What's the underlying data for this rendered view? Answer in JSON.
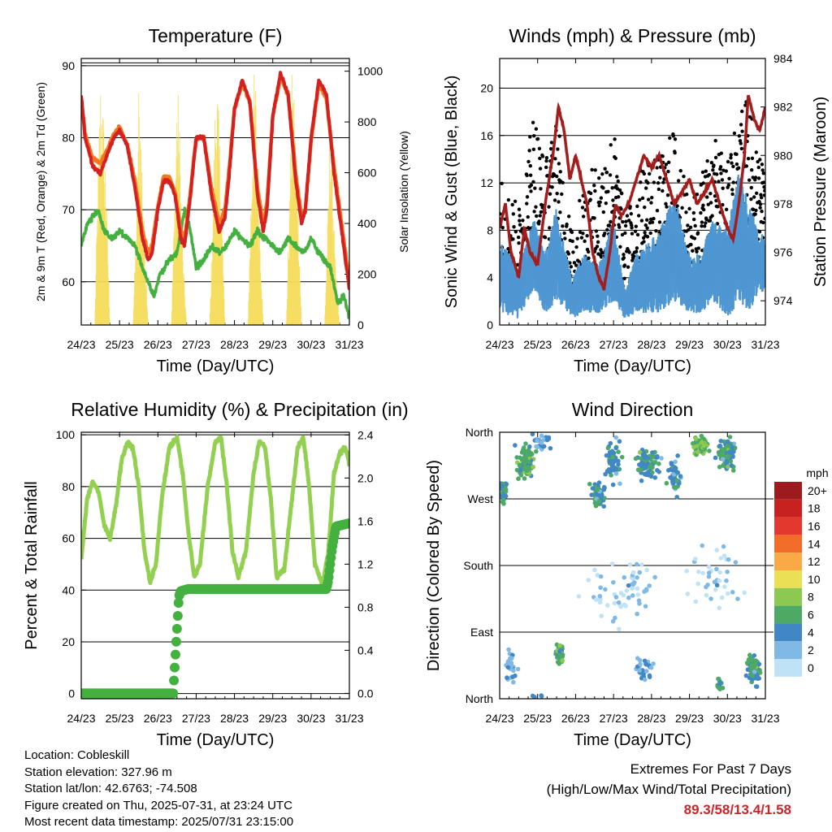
{
  "chart_data": [
    {
      "type": "line",
      "title": "Temperature (F)",
      "xlabel": "Time (Day/UTC)",
      "ylabel": "2m & 9m T (Red, Orange) & 2m Td (Green)",
      "y2label": "Solar Insolation (Yellow)",
      "x_ticks": [
        "24/23",
        "25/23",
        "26/23",
        "27/23",
        "28/23",
        "29/23",
        "30/23",
        "31/23"
      ],
      "ylim": [
        54,
        91
      ],
      "yticks": [
        60,
        70,
        80,
        90
      ],
      "y2lim": [
        0,
        1050
      ],
      "y2ticks": [
        0,
        200,
        400,
        600,
        800,
        1000
      ],
      "grid": true,
      "colors": {
        "t2m": "#d42020",
        "t9m": "#f07820",
        "td": "#44b040",
        "solar": "#f5dc5a"
      },
      "series": [
        {
          "key": "t2m",
          "x": [
            0,
            0.1,
            0.3,
            0.5,
            0.7,
            0.85,
            1,
            1.2,
            1.4,
            1.6,
            1.75,
            1.85,
            2.0,
            2.15,
            2.3,
            2.45,
            2.6,
            2.7,
            2.85,
            3.0,
            3.2,
            3.4,
            3.6,
            3.75,
            3.85,
            4.0,
            4.2,
            4.4,
            4.6,
            4.75,
            4.85,
            5.0,
            5.2,
            5.4,
            5.6,
            5.75,
            5.85,
            6.0,
            6.2,
            6.4,
            6.6,
            6.75,
            6.9,
            7.0
          ],
          "values": [
            86,
            80,
            76,
            75,
            78,
            80,
            81,
            79,
            73,
            66,
            63,
            64,
            70,
            74,
            74,
            72,
            66,
            65,
            72,
            80,
            80,
            72,
            67,
            69,
            74,
            84,
            88,
            85,
            72,
            67,
            70,
            83,
            89,
            86,
            74,
            68,
            70,
            80,
            88,
            86,
            75,
            69,
            63,
            59
          ]
        },
        {
          "key": "t9m",
          "x": [
            0,
            0.1,
            0.3,
            0.5,
            0.7,
            0.85,
            1,
            1.2,
            1.4,
            1.6,
            1.75,
            1.85,
            2.0,
            2.15,
            2.3,
            2.45,
            2.6,
            2.7,
            2.85,
            3.0,
            3.2,
            3.4,
            3.6,
            3.75,
            3.85,
            4.0,
            4.2,
            4.4,
            4.6,
            4.75,
            4.85,
            5.0,
            5.2,
            5.4,
            5.6,
            5.75,
            5.85,
            6.0,
            6.2,
            6.4,
            6.6,
            6.75,
            6.9,
            7.0
          ],
          "values": [
            85.5,
            80.5,
            77,
            76.5,
            78.5,
            80.5,
            81.5,
            79,
            74,
            67,
            64,
            65,
            70.5,
            74.5,
            74.5,
            72.5,
            67,
            66,
            72.5,
            80,
            80,
            73,
            68,
            70,
            75,
            84,
            87.5,
            85,
            73,
            68,
            71,
            83,
            88.5,
            86,
            75,
            69,
            70,
            79.5,
            87.5,
            85.5,
            76,
            70,
            64,
            59.5
          ]
        },
        {
          "key": "td",
          "x": [
            0,
            0.15,
            0.3,
            0.45,
            0.6,
            0.8,
            1.0,
            1.2,
            1.4,
            1.6,
            1.75,
            1.9,
            2.05,
            2.3,
            2.5,
            2.7,
            2.85,
            3.0,
            3.2,
            3.4,
            3.6,
            3.8,
            4.0,
            4.2,
            4.4,
            4.6,
            4.8,
            5.0,
            5.2,
            5.4,
            5.6,
            5.8,
            6.0,
            6.2,
            6.35,
            6.5,
            6.7,
            6.85,
            7.0
          ],
          "values": [
            65,
            68,
            69,
            70,
            67,
            66,
            67,
            66,
            65,
            62,
            60,
            58,
            61,
            63,
            64,
            70,
            67,
            62,
            63,
            65,
            64,
            65,
            67,
            66,
            65,
            67,
            66,
            65,
            64,
            66,
            65,
            64,
            66,
            64,
            63,
            62,
            57,
            58,
            55
          ]
        },
        {
          "key": "solar",
          "x": [
            0,
            0.35,
            0.45,
            0.5,
            0.55,
            0.65,
            0.75,
            1.35,
            1.45,
            1.5,
            1.55,
            1.65,
            1.75,
            2.35,
            2.45,
            2.5,
            2.55,
            2.65,
            2.75,
            3.35,
            3.45,
            3.5,
            3.55,
            3.65,
            3.75,
            4.35,
            4.45,
            4.5,
            4.55,
            4.65,
            4.75,
            5.35,
            5.45,
            5.5,
            5.55,
            5.65,
            5.75,
            6.35,
            6.45,
            6.5,
            6.55,
            6.65,
            6.75,
            7.0
          ],
          "values": [
            0,
            0,
            700,
            1000,
            950,
            600,
            0,
            0,
            500,
            980,
            850,
            400,
            0,
            0,
            600,
            970,
            900,
            300,
            0,
            0,
            550,
            950,
            1000,
            600,
            0,
            0,
            650,
            1000,
            1000,
            500,
            0,
            0,
            600,
            1000,
            990,
            600,
            0,
            0,
            500,
            900,
            700,
            200,
            0,
            0
          ]
        }
      ]
    },
    {
      "type": "scatter",
      "title": "Winds (mph) & Pressure (mb)",
      "xlabel": "Time (Day/UTC)",
      "ylabel": "Sonic Wind & Gust (Blue, Black)",
      "y2label": "Station Pressure (Maroon)",
      "x_ticks": [
        "24/23",
        "25/23",
        "26/23",
        "27/23",
        "28/23",
        "29/23",
        "30/23",
        "31/23"
      ],
      "ylim": [
        0,
        22.5
      ],
      "yticks": [
        0,
        4,
        8,
        12,
        16,
        20
      ],
      "y2lim": [
        973,
        984
      ],
      "y2ticks": [
        974,
        976,
        978,
        980,
        982,
        984
      ],
      "grid": true,
      "colors": {
        "wind": "#4f97d2",
        "gust": "#000000",
        "pressure": "#a31d1d"
      },
      "pressure": {
        "x": [
          0,
          0.15,
          0.3,
          0.5,
          0.65,
          0.8,
          1.0,
          1.2,
          1.4,
          1.55,
          1.7,
          1.85,
          2.0,
          2.15,
          2.3,
          2.45,
          2.6,
          2.75,
          2.9,
          3.05,
          3.2,
          3.4,
          3.6,
          3.8,
          4.0,
          4.2,
          4.4,
          4.6,
          4.8,
          5.0,
          5.2,
          5.4,
          5.6,
          5.8,
          6.0,
          6.15,
          6.3,
          6.45,
          6.55,
          6.7,
          6.85,
          7.0
        ],
        "values": [
          977,
          978,
          976,
          975,
          977,
          976,
          975.5,
          978,
          980,
          982,
          981,
          979,
          980,
          979,
          978,
          976,
          975,
          974.5,
          976,
          978,
          977.5,
          978,
          979,
          980,
          979.5,
          980,
          979,
          978,
          978.5,
          979,
          978,
          978.5,
          979,
          978,
          977,
          976.5,
          978,
          980,
          982.5,
          981.5,
          981,
          982
        ]
      },
      "wind_envelope": {
        "x": [
          0,
          0.5,
          0.9,
          1.2,
          1.5,
          1.9,
          2.2,
          2.6,
          3.0,
          3.3,
          3.6,
          3.9,
          4.2,
          4.6,
          5.0,
          5.3,
          5.6,
          6.0,
          6.3,
          6.6,
          7.0
        ],
        "low": [
          1,
          0.5,
          3,
          1,
          2,
          0.5,
          1,
          1,
          2,
          0.5,
          1,
          1,
          1,
          2,
          1,
          1,
          2,
          0.5,
          2,
          1,
          3
        ],
        "high": [
          7,
          5,
          9,
          6,
          10,
          4,
          6,
          5,
          9,
          3,
          6,
          7,
          8,
          11,
          6,
          6,
          9,
          8,
          13,
          10,
          7
        ]
      },
      "gust_envelope": {
        "x": [
          0,
          0.5,
          0.9,
          1.2,
          1.5,
          1.9,
          2.2,
          2.6,
          3.0,
          3.3,
          3.6,
          3.9,
          4.2,
          4.6,
          5.0,
          5.3,
          5.6,
          6.0,
          6.3,
          6.6,
          7.0
        ],
        "low": [
          3,
          2,
          6,
          3,
          6,
          1,
          3,
          3,
          6,
          2,
          3,
          3,
          4,
          5,
          3,
          3,
          6,
          2,
          6,
          3,
          8
        ],
        "high": [
          13,
          10,
          19,
          14,
          18,
          8,
          12,
          14,
          17,
          9,
          12,
          15,
          14,
          17,
          10,
          13,
          16,
          14,
          19,
          20,
          14
        ]
      }
    },
    {
      "type": "line",
      "title": "Relative Humidity (%) & Precipitation (in)",
      "xlabel": "Time (Day/UTC)",
      "ylabel": "Percent & Total Rainfall",
      "x_ticks": [
        "24/23",
        "25/23",
        "26/23",
        "27/23",
        "28/23",
        "29/23",
        "30/23",
        "31/23"
      ],
      "ylim": [
        -2,
        101
      ],
      "yticks": [
        0,
        20,
        40,
        60,
        80,
        100
      ],
      "y2lim": [
        -0.05,
        2.425
      ],
      "y2ticks": [
        "0.0",
        "0.4",
        "0.8",
        "1.2",
        "1.6",
        "2.0",
        "2.4"
      ],
      "grid": true,
      "colors": {
        "rh": "#93cf50",
        "precip": "#44b040"
      },
      "rh": {
        "x": [
          0,
          0.15,
          0.3,
          0.45,
          0.6,
          0.75,
          0.9,
          1.05,
          1.2,
          1.35,
          1.5,
          1.65,
          1.8,
          1.95,
          2.1,
          2.3,
          2.5,
          2.65,
          2.8,
          2.95,
          3.1,
          3.3,
          3.5,
          3.65,
          3.8,
          3.95,
          4.1,
          4.3,
          4.5,
          4.65,
          4.8,
          4.95,
          5.1,
          5.3,
          5.5,
          5.65,
          5.8,
          5.95,
          6.1,
          6.3,
          6.45,
          6.6,
          6.75,
          6.9,
          7.0
        ],
        "values": [
          52,
          75,
          82,
          78,
          65,
          60,
          72,
          90,
          97,
          95,
          80,
          55,
          43,
          50,
          75,
          95,
          99,
          85,
          62,
          45,
          50,
          80,
          97,
          99,
          80,
          55,
          45,
          55,
          85,
          98,
          95,
          75,
          45,
          48,
          75,
          95,
          99,
          80,
          50,
          42,
          55,
          85,
          93,
          95,
          88
        ]
      },
      "precip": {
        "x": [
          0,
          2.4,
          2.45,
          2.5,
          2.55,
          2.6,
          2.8,
          6.4,
          6.45,
          6.55,
          6.65,
          7.0
        ],
        "values": [
          0,
          0,
          0.3,
          0.6,
          0.9,
          0.95,
          0.97,
          0.97,
          1.05,
          1.35,
          1.55,
          1.58
        ]
      }
    },
    {
      "type": "scatter",
      "title": "Wind Direction",
      "xlabel": "Time (Day/UTC)",
      "ylabel": "Direction (Colored By Speed)",
      "x_ticks": [
        "24/23",
        "25/23",
        "26/23",
        "27/23",
        "28/23",
        "29/23",
        "30/23",
        "31/23"
      ],
      "y_ticks": [
        "North",
        "East",
        "South",
        "West",
        "North"
      ],
      "colorbar_label": "mph",
      "colorbar": [
        {
          "label": "20+",
          "color": "#9b1b1e"
        },
        {
          "label": "18",
          "color": "#c7221f"
        },
        {
          "label": "16",
          "color": "#e2382d"
        },
        {
          "label": "14",
          "color": "#f36d2a"
        },
        {
          "label": "12",
          "color": "#f9a945"
        },
        {
          "label": "10",
          "color": "#ebdf55"
        },
        {
          "label": "8",
          "color": "#8dc850"
        },
        {
          "label": "6",
          "color": "#4da966"
        },
        {
          "label": "4",
          "color": "#4287c5"
        },
        {
          "label": "2",
          "color": "#80b9e4"
        },
        {
          "label": "0",
          "color": "#bfe2f6"
        }
      ],
      "clusters": [
        {
          "t": 0.7,
          "dir": 320,
          "spread_t": 0.35,
          "spread_d": 35,
          "n": 90,
          "speed": 6
        },
        {
          "t": 0.1,
          "dir": 280,
          "spread_t": 0.15,
          "spread_d": 25,
          "n": 35,
          "speed": 5
        },
        {
          "t": 1.6,
          "dir": 60,
          "spread_t": 0.15,
          "spread_d": 20,
          "n": 50,
          "speed": 6
        },
        {
          "t": 1.1,
          "dir": 350,
          "spread_t": 0.4,
          "spread_d": 20,
          "n": 30,
          "speed": 3
        },
        {
          "t": 2.6,
          "dir": 275,
          "spread_t": 0.3,
          "spread_d": 25,
          "n": 60,
          "speed": 5
        },
        {
          "t": 3.0,
          "dir": 320,
          "spread_t": 0.3,
          "spread_d": 40,
          "n": 60,
          "speed": 4
        },
        {
          "t": 3.9,
          "dir": 320,
          "spread_t": 0.4,
          "spread_d": 30,
          "n": 80,
          "speed": 5
        },
        {
          "t": 4.6,
          "dir": 300,
          "spread_t": 0.25,
          "spread_d": 30,
          "n": 50,
          "speed": 4
        },
        {
          "t": 5.3,
          "dir": 340,
          "spread_t": 0.3,
          "spread_d": 20,
          "n": 60,
          "speed": 7
        },
        {
          "t": 6.0,
          "dir": 330,
          "spread_t": 0.35,
          "spread_d": 30,
          "n": 80,
          "speed": 5
        },
        {
          "t": 6.7,
          "dir": 40,
          "spread_t": 0.25,
          "spread_d": 30,
          "n": 70,
          "speed": 5
        },
        {
          "t": 3.8,
          "dir": 40,
          "spread_t": 0.3,
          "spread_d": 25,
          "n": 30,
          "speed": 3
        },
        {
          "t": 3.3,
          "dir": 150,
          "spread_t": 1.5,
          "spread_d": 60,
          "n": 60,
          "speed": 1
        },
        {
          "t": 5.7,
          "dir": 160,
          "spread_t": 1.0,
          "spread_d": 60,
          "n": 40,
          "speed": 1
        },
        {
          "t": 0.3,
          "dir": 40,
          "spread_t": 0.2,
          "spread_d": 30,
          "n": 25,
          "speed": 3
        },
        {
          "t": 5.8,
          "dir": 20,
          "spread_t": 0.1,
          "spread_d": 15,
          "n": 15,
          "speed": 5
        }
      ]
    }
  ],
  "info": {
    "location": "Location: Cobleskill",
    "elevation": "Station elevation: 327.96 m",
    "latlon": "Station lat/lon: 42.6763; -74.508",
    "created": "Figure created on Thu, 2025-07-31, at 23:24 UTC",
    "recent": "Most recent data timestamp: 2025/07/31 23:15:00"
  },
  "extremes": {
    "line1": "Extremes For Past 7 Days",
    "line2": "(High/Low/Max Wind/Total Precipitation)",
    "values": "89.3/58/13.4/1.58"
  }
}
